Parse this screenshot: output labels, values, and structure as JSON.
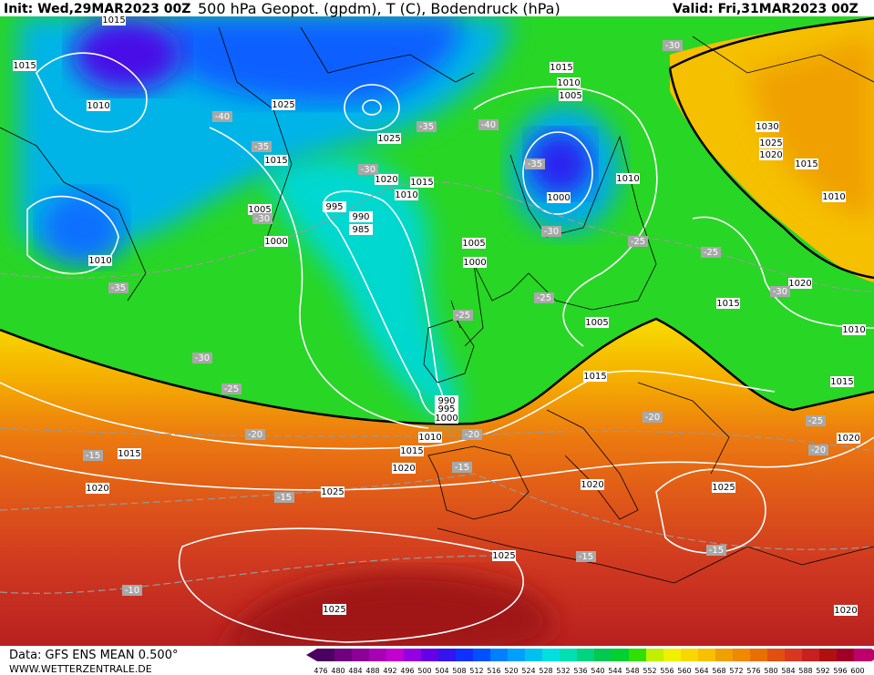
{
  "header": {
    "init": "Init: Wed,29MAR2023 00Z",
    "title": "500 hPa Geopot. (gpdm), T (C), Bodendruck (hPa)",
    "valid": "Valid: Fri,31MAR2023 00Z"
  },
  "footer": {
    "data": "Data: GFS ENS MEAN 0.500°",
    "site": "WWW.WETTERZENTRALE.DE"
  },
  "colorbar": {
    "labels": [
      476,
      480,
      484,
      488,
      492,
      496,
      500,
      504,
      508,
      512,
      516,
      520,
      524,
      528,
      532,
      536,
      540,
      544,
      548,
      552,
      556,
      560,
      564,
      568,
      572,
      576,
      580,
      584,
      588,
      592,
      596,
      600
    ],
    "colors": [
      "#4b0060",
      "#700080",
      "#8c0096",
      "#a800b4",
      "#c400d0",
      "#9400e0",
      "#6400e8",
      "#3414f0",
      "#1030ff",
      "#0050ff",
      "#0080ff",
      "#00a0ff",
      "#00c0f0",
      "#00e0e0",
      "#00e0b0",
      "#00d480",
      "#00c850",
      "#00d030",
      "#30e000",
      "#c0f000",
      "#f0f000",
      "#f8d800",
      "#f8c000",
      "#f0a000",
      "#f08800",
      "#e87000",
      "#e05010",
      "#d83820",
      "#c82020",
      "#b01010",
      "#a00028",
      "#c0006a"
    ]
  },
  "map": {
    "isobar_labels": [
      1015,
      1015,
      1010,
      1025,
      1025,
      1015,
      1020,
      1015,
      1010,
      995,
      990,
      985,
      1005,
      1000,
      1010,
      1015,
      1010,
      1005,
      1000,
      1010,
      1005,
      1000,
      1030,
      1025,
      1020,
      1015,
      1010,
      1020,
      1015,
      1005,
      1010,
      1015,
      1015,
      990,
      995,
      1000,
      1010,
      1015,
      1015,
      1020,
      1020,
      1025,
      1020,
      1025,
      1025,
      1025,
      1020,
      1020
    ],
    "temperature_labels": [
      -30,
      -40,
      -35,
      -35,
      -40,
      -30,
      -35,
      -30,
      -30,
      -25,
      -25,
      -35,
      -25,
      -25,
      -30,
      -30,
      -25,
      -20,
      -25,
      -20,
      -20,
      -20,
      -15,
      -15,
      -15,
      -15,
      -15,
      -10
    ]
  }
}
